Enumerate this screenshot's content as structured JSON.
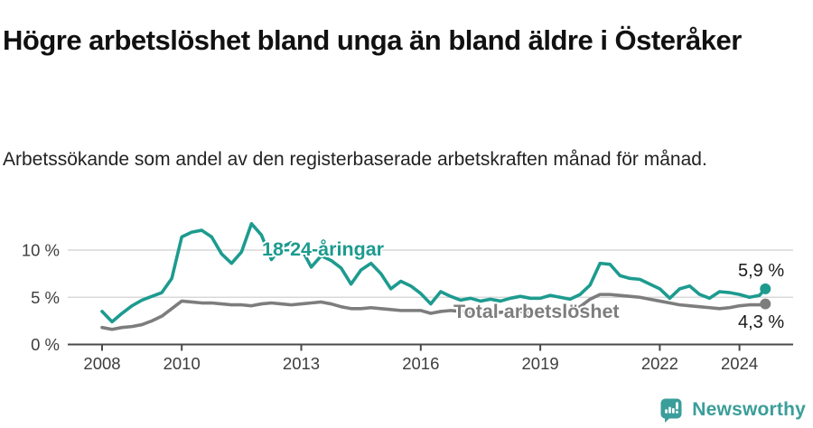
{
  "header": {
    "title": "Högre arbetslöshet bland unga än bland äldre i Österåker",
    "subtitle": "Arbetssökande som andel av den registerbaserade arbetskraften månad för månad."
  },
  "colors": {
    "youth": "#1d9b8f",
    "total": "#7d7d7d",
    "grid": "#d9d9d9",
    "axis": "#4a4a4a",
    "tick_text": "#3d3d3d",
    "annotation_text": "#1a1a1a",
    "brand": "#3a9e9a"
  },
  "chart_data": {
    "type": "line",
    "title": "",
    "xlabel": "",
    "ylabel": "",
    "grid": "horizontal",
    "legend_position": "inline-labels",
    "xlim": [
      2007.5,
      2025.4
    ],
    "ylim": [
      0,
      13.5
    ],
    "x_ticks": {
      "values": [
        2008,
        2010,
        2013,
        2016,
        2019,
        2022,
        2024
      ],
      "labels": [
        "2008",
        "2010",
        "2013",
        "2016",
        "2019",
        "2022",
        "2024"
      ]
    },
    "y_ticks": {
      "values": [
        0,
        5,
        10
      ],
      "labels": [
        "0 %",
        "5 %",
        "10 %"
      ]
    },
    "x": [
      2008.0,
      2008.25,
      2008.5,
      2008.75,
      2009.0,
      2009.25,
      2009.5,
      2009.75,
      2010.0,
      2010.25,
      2010.5,
      2010.75,
      2011.0,
      2011.25,
      2011.5,
      2011.75,
      2012.0,
      2012.25,
      2012.5,
      2012.75,
      2013.0,
      2013.25,
      2013.5,
      2013.75,
      2014.0,
      2014.25,
      2014.5,
      2014.75,
      2015.0,
      2015.25,
      2015.5,
      2015.75,
      2016.0,
      2016.25,
      2016.5,
      2016.75,
      2017.0,
      2017.25,
      2017.5,
      2017.75,
      2018.0,
      2018.25,
      2018.5,
      2018.75,
      2019.0,
      2019.25,
      2019.5,
      2019.75,
      2020.0,
      2020.25,
      2020.5,
      2020.75,
      2021.0,
      2021.25,
      2021.5,
      2021.75,
      2022.0,
      2022.25,
      2022.5,
      2022.75,
      2023.0,
      2023.25,
      2023.5,
      2023.75,
      2024.0,
      2024.25,
      2024.5,
      2024.65
    ],
    "series": [
      {
        "name": "18-24-åringar",
        "color_key": "youth",
        "end_label": "5,9 %",
        "end_value": 5.9,
        "values": [
          3.5,
          2.4,
          3.3,
          4.1,
          4.7,
          5.1,
          5.5,
          7.0,
          11.4,
          11.9,
          12.1,
          11.4,
          9.6,
          8.6,
          9.8,
          12.8,
          11.6,
          9.0,
          10.3,
          10.8,
          10.2,
          8.2,
          9.4,
          8.9,
          8.1,
          6.4,
          7.9,
          8.6,
          7.5,
          5.9,
          6.7,
          6.2,
          5.4,
          4.3,
          5.6,
          5.1,
          4.7,
          4.9,
          4.6,
          4.8,
          4.6,
          4.9,
          5.1,
          4.9,
          4.9,
          5.2,
          5.0,
          4.8,
          5.3,
          6.3,
          8.6,
          8.5,
          7.3,
          7.0,
          6.9,
          6.4,
          5.9,
          4.9,
          5.9,
          6.2,
          5.3,
          4.9,
          5.6,
          5.5,
          5.3,
          5.0,
          5.2,
          5.9
        ]
      },
      {
        "name": "Total arbetslöshet",
        "color_key": "total",
        "end_label": "4,3 %",
        "end_value": 4.3,
        "values": [
          1.8,
          1.6,
          1.8,
          1.9,
          2.1,
          2.5,
          3.0,
          3.8,
          4.6,
          4.5,
          4.4,
          4.4,
          4.3,
          4.2,
          4.2,
          4.1,
          4.3,
          4.4,
          4.3,
          4.2,
          4.3,
          4.4,
          4.5,
          4.3,
          4.0,
          3.8,
          3.8,
          3.9,
          3.8,
          3.7,
          3.6,
          3.6,
          3.6,
          3.3,
          3.5,
          3.6,
          3.5,
          3.4,
          3.3,
          3.4,
          3.4,
          3.5,
          3.5,
          3.4,
          3.5,
          3.6,
          3.6,
          3.7,
          4.0,
          4.8,
          5.3,
          5.3,
          5.2,
          5.1,
          5.0,
          4.8,
          4.6,
          4.4,
          4.2,
          4.1,
          4.0,
          3.9,
          3.8,
          3.9,
          4.1,
          4.2,
          4.2,
          4.3
        ]
      }
    ]
  },
  "footer": {
    "brand": "Newsworthy",
    "logo_icon": "newsworthy-bubble-chart-icon"
  }
}
